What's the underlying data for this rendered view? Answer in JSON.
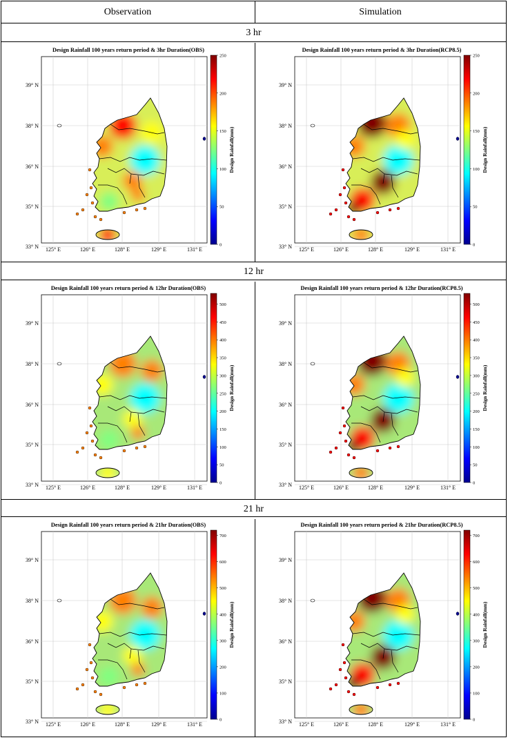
{
  "headers": {
    "observation": "Observation",
    "simulation": "Simulation"
  },
  "colorbar_label": "Design Rainfall(mm)",
  "lat_ticks": [
    "39° N",
    "38° N",
    "36° N",
    "35° N",
    "33° N"
  ],
  "lon_ticks": [
    "125° E",
    "126° E",
    "128° E",
    "129° E",
    "131° E"
  ],
  "sections": [
    {
      "duration": "3 hr",
      "obs_title": "Design Rainfall 100 years return period & 3hr Duration(OBS)",
      "sim_title": "Design Rainfall 100 years return period & 3hr Duration(RCP8.5)",
      "colorbar_ticks": [
        "0",
        "50",
        "100",
        "150",
        "200",
        "250"
      ],
      "range": [
        0,
        250
      ]
    },
    {
      "duration": "12 hr",
      "obs_title": "Design Rainfall 100 years return period & 12hr Duration(OBS)",
      "sim_title": "Design Rainfall 100 years return period & 12hr Duration(RCP8.5)",
      "colorbar_ticks": [
        "0",
        "50",
        "100",
        "150",
        "200",
        "250",
        "300",
        "350",
        "400",
        "450",
        "500"
      ],
      "range": [
        0,
        530
      ]
    },
    {
      "duration": "21 hr",
      "obs_title": "Design Rainfall 100 years return period & 21hr Duration(OBS)",
      "sim_title": "Design Rainfall 100 years return period & 21hr Duration(RCP8.5)",
      "colorbar_ticks": [
        "0",
        "100",
        "200",
        "300",
        "400",
        "500",
        "600",
        "700"
      ],
      "range": [
        0,
        720
      ]
    }
  ],
  "colors": {
    "jet": [
      "#00008f",
      "#0000ff",
      "#0080ff",
      "#00ffff",
      "#80ff80",
      "#ffff00",
      "#ff8000",
      "#ff0000",
      "#800000"
    ]
  }
}
